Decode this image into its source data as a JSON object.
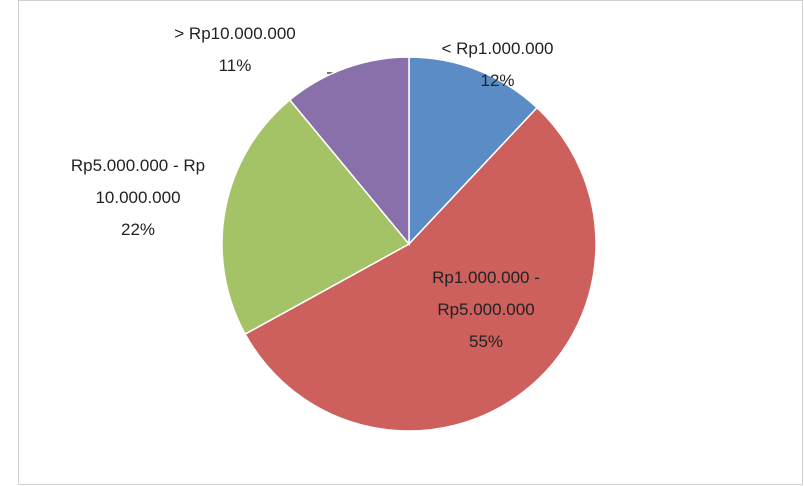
{
  "chart_data": {
    "type": "pie",
    "categories": [
      "< Rp1.000.000",
      "Rp1.000.000 - Rp5.000.000",
      "Rp5.000.000 - Rp10.000.000",
      "> Rp10.000.000"
    ],
    "values": [
      12,
      55,
      22,
      11
    ],
    "value_labels": [
      "12%",
      "55%",
      "22%",
      "11%"
    ],
    "colors": [
      "#5b8cc6",
      "#cd5f5c",
      "#a3c366",
      "#8a70aa"
    ]
  }
}
